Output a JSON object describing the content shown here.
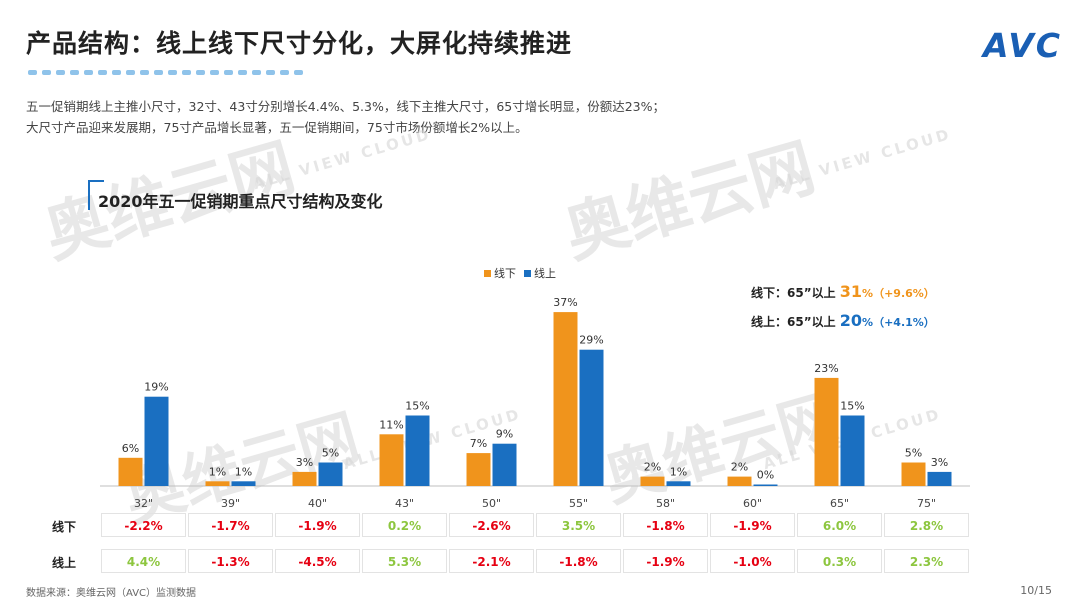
{
  "header": {
    "title": "产品结构：线上线下尺寸分化，大屏化持续推进",
    "logo": "AVC"
  },
  "description": {
    "line1": "五一促销期线上主推小尺寸，32寸、43寸分别增长4.4%、5.3%，线下主推大尺寸，65寸增长明显，份额达23%；",
    "line2": "大尺寸产品迎来发展期，75寸产品增长显著，五一促销期间，75寸市场份额增长2%以上。"
  },
  "watermark": {
    "text": "奥维云网",
    "sub": "ALL VIEW CLOUD"
  },
  "chart_data": {
    "type": "bar",
    "title": "2020年五一促销期重点尺寸结构及变化",
    "categories": [
      "32\"",
      "39\"",
      "40\"",
      "43\"",
      "50\"",
      "55\"",
      "58\"",
      "60\"",
      "65\"",
      "75\""
    ],
    "series": [
      {
        "name": "线下",
        "color": "#f0941c",
        "values": [
          6,
          1,
          3,
          11,
          7,
          37,
          2,
          2,
          23,
          5
        ],
        "labels": [
          "6%",
          "1%",
          "3%",
          "11%",
          "7%",
          "37%",
          "2%",
          "2%",
          "23%",
          "5%"
        ]
      },
      {
        "name": "线上",
        "color": "#1a6fc1",
        "values": [
          19,
          1,
          5,
          15,
          9,
          29,
          1,
          0.3,
          15,
          3
        ],
        "labels": [
          "19%",
          "1%",
          "5%",
          "15%",
          "9%",
          "29%",
          "1%",
          "0%",
          "15%",
          "3%"
        ]
      }
    ],
    "ylim": [
      0,
      40
    ],
    "legend_position": "top-center"
  },
  "summary": {
    "offline": {
      "prefix": "线下：65”以上",
      "value": "31",
      "unit": "%",
      "change": "（+9.6%）",
      "color": "#f0941c"
    },
    "online": {
      "prefix": "线上：65”以上",
      "value": "20",
      "unit": "%",
      "change": "（+4.1%）",
      "color": "#1a6fc1"
    }
  },
  "change_table": {
    "rows": [
      {
        "label": "线下",
        "values": [
          "-2.2%",
          "-1.7%",
          "-1.9%",
          "0.2%",
          "-2.6%",
          "3.5%",
          "-1.8%",
          "-1.9%",
          "6.0%",
          "2.8%"
        ]
      },
      {
        "label": "线上",
        "values": [
          "4.4%",
          "-1.3%",
          "-4.5%",
          "5.3%",
          "-2.1%",
          "-1.8%",
          "-1.9%",
          "-1.0%",
          "0.3%",
          "2.3%"
        ]
      }
    ],
    "positive_color": "#8dc63f",
    "negative_color": "#e60012"
  },
  "footer": {
    "source": "数据来源：奥维云网（AVC）监测数据",
    "page": "10/15"
  }
}
